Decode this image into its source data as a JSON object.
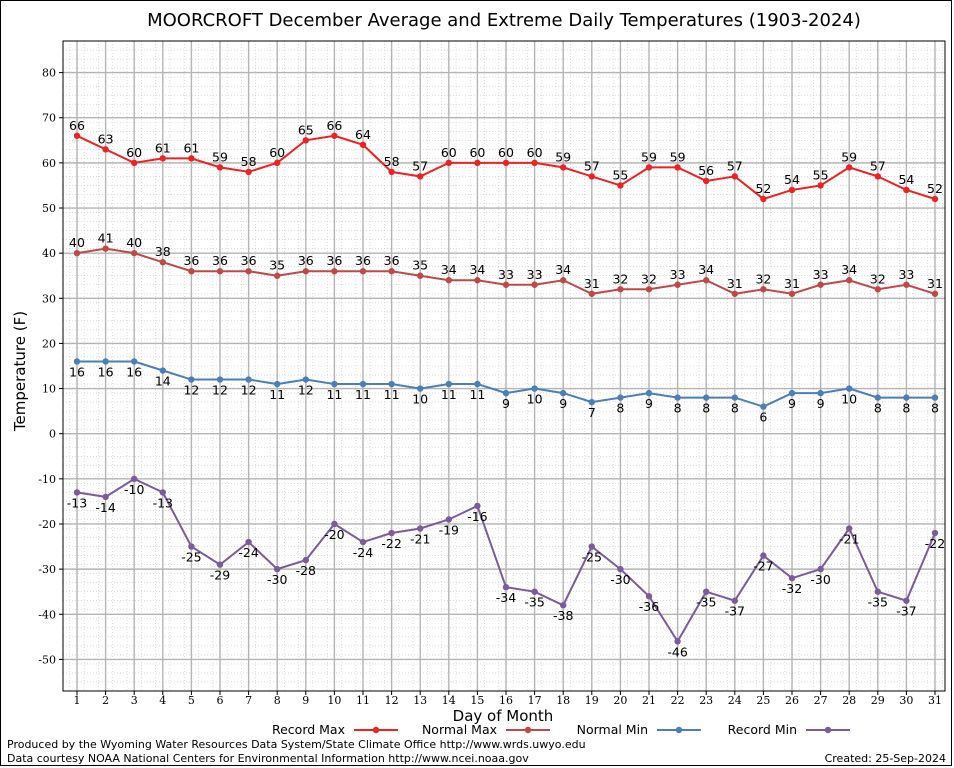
{
  "chart_data": {
    "type": "line",
    "title": "MOORCROFT December Average and Extreme Daily Temperatures (1903-2024)",
    "xlabel": "Day of Month",
    "ylabel": "Temperature (F)",
    "ylim": [
      -57,
      87
    ],
    "yticks": [
      -50,
      -40,
      -30,
      -20,
      -10,
      0,
      10,
      20,
      30,
      40,
      50,
      60,
      70,
      80
    ],
    "x": [
      1,
      2,
      3,
      4,
      5,
      6,
      7,
      8,
      9,
      10,
      11,
      12,
      13,
      14,
      15,
      16,
      17,
      18,
      19,
      20,
      21,
      22,
      23,
      24,
      25,
      26,
      27,
      28,
      29,
      30,
      31
    ],
    "grid": true,
    "legend_position": "bottom",
    "series": [
      {
        "name": "Record Max",
        "color": "#ee2222",
        "label_pos": "above",
        "values": [
          66,
          63,
          60,
          61,
          61,
          59,
          58,
          60,
          65,
          66,
          64,
          58,
          57,
          60,
          60,
          60,
          60,
          59,
          57,
          55,
          59,
          59,
          56,
          57,
          52,
          54,
          55,
          59,
          57,
          54,
          52
        ]
      },
      {
        "name": "Normal Max",
        "color": "#c04848",
        "label_pos": "above",
        "values": [
          40,
          41,
          40,
          38,
          36,
          36,
          36,
          35,
          36,
          36,
          36,
          36,
          35,
          34,
          34,
          33,
          33,
          34,
          31,
          32,
          32,
          33,
          34,
          31,
          32,
          31,
          33,
          34,
          32,
          33,
          31
        ]
      },
      {
        "name": "Normal Min",
        "color": "#4a7fb8",
        "label_pos": "below",
        "values": [
          16,
          16,
          16,
          14,
          12,
          12,
          12,
          11,
          12,
          11,
          11,
          11,
          10,
          11,
          11,
          9,
          10,
          9,
          7,
          8,
          9,
          8,
          8,
          8,
          6,
          9,
          9,
          10,
          8,
          8,
          8
        ]
      },
      {
        "name": "Record Min",
        "color": "#7c5a9c",
        "label_pos": "below",
        "values": [
          -13,
          -14,
          -10,
          -13,
          -25,
          -29,
          -24,
          -30,
          -28,
          -20,
          -24,
          -22,
          -21,
          -19,
          -16,
          -34,
          -35,
          -38,
          -25,
          -30,
          -36,
          -46,
          -35,
          -37,
          -27,
          -32,
          -30,
          -21,
          -35,
          -37,
          -22
        ]
      }
    ]
  },
  "footer": {
    "produced_by": "Produced by the Wyoming Water Resources Data System/State Climate Office http://www.wrds.uwyo.edu",
    "data_courtesy": "Data courtesy NOAA National Centers for Environmental Information http://www.ncei.noaa.gov",
    "created": "Created:  25-Sep-2024"
  }
}
